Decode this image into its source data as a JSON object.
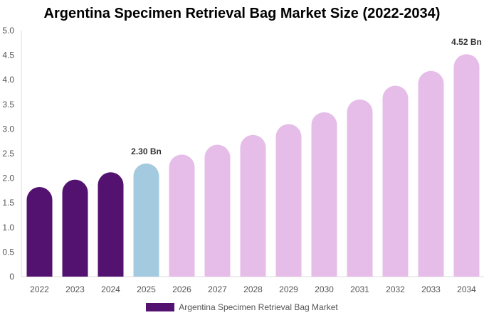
{
  "chart_data": {
    "type": "bar",
    "title": "Argentina Specimen Retrieval Bag Market Size (2022-2034)",
    "categories": [
      "2022",
      "2023",
      "2024",
      "2025",
      "2026",
      "2027",
      "2028",
      "2029",
      "2030",
      "2031",
      "2032",
      "2033",
      "2034"
    ],
    "series": [
      {
        "name": "Argentina Specimen Retrieval Bag Market",
        "values": [
          1.82,
          1.97,
          2.12,
          2.3,
          2.48,
          2.68,
          2.88,
          3.1,
          3.34,
          3.6,
          3.88,
          4.18,
          4.52
        ]
      }
    ],
    "data_labels": [
      {
        "category": "2025",
        "text": "2.30 Bn"
      },
      {
        "category": "2034",
        "text": "4.52 Bn"
      }
    ],
    "yticks": [
      "0",
      "0.5",
      "1.0",
      "1.5",
      "2.0",
      "2.5",
      "3.0",
      "3.5",
      "4.0",
      "4.5",
      "5.0"
    ],
    "ylim": [
      0,
      5.0
    ],
    "grid": false,
    "legend_position": "bottom",
    "colors": {
      "historical": "#541270",
      "base_year": "#A3CADE",
      "forecast": "#E6BDE8"
    },
    "historical_years": [
      "2022",
      "2023",
      "2024"
    ],
    "base_year": "2025"
  }
}
